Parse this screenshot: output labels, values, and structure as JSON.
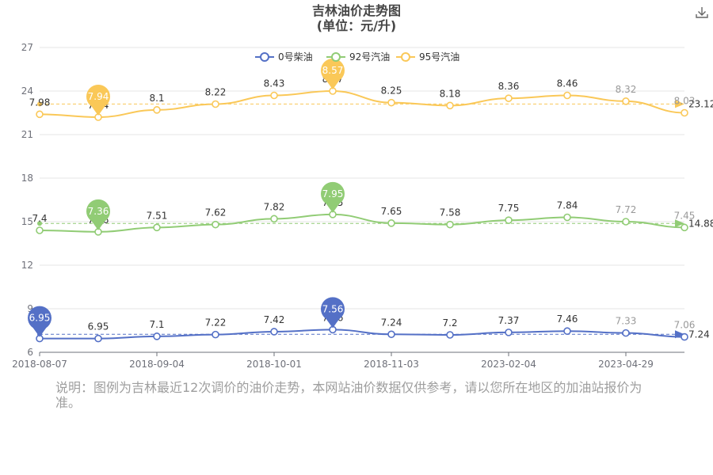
{
  "title": {
    "line1": "吉林油价走势图",
    "line2": "(单位：元/升)"
  },
  "toolbar": {
    "download_icon": "download-icon"
  },
  "note": "说明：图例为吉林最近12次调价的油价走势，本网站油价数据仅供参考，请以您所在地区的加油站报价为准。",
  "colors": {
    "diesel0": "#5470c6",
    "gas92": "#91cc75",
    "gas95": "#fac858"
  },
  "chart_data": {
    "type": "line",
    "x_tick_labels": [
      "2018-08-07",
      "2018-09-04",
      "2018-10-01",
      "2018-11-03",
      "2023-02-04",
      "2023-04-29"
    ],
    "ylim": [
      6,
      27
    ],
    "y_ticks": [
      6,
      9,
      12,
      15,
      18,
      21,
      24,
      27
    ],
    "grid": true,
    "legend_position": "top-center",
    "series": [
      {
        "key": "diesel0",
        "name": "0号柴油",
        "values": [
          6.95,
          6.95,
          7.1,
          7.22,
          7.42,
          7.56,
          7.24,
          7.2,
          7.37,
          7.46,
          7.33,
          7.06
        ],
        "labels": [
          "7",
          "6.95",
          "7.1",
          "7.22",
          "7.42",
          "7.56",
          "7.24",
          "7.2",
          "7.37",
          "7.46",
          "7.33",
          "7.06"
        ],
        "min_label": "6.95",
        "max_label": "7.56",
        "average": "7.24"
      },
      {
        "key": "gas92",
        "name": "92号汽油",
        "values": [
          14.4,
          14.3,
          14.6,
          14.8,
          15.2,
          15.5,
          14.9,
          14.8,
          15.1,
          15.3,
          15.0,
          14.6
        ],
        "labels": [
          "7.4",
          "7.36",
          "7.51",
          "7.62",
          "7.82",
          "7.95",
          "7.65",
          "7.58",
          "7.75",
          "7.84",
          "7.72",
          "7.45"
        ],
        "min_label": "7.36",
        "max_label": "7.95",
        "average": "14.88"
      },
      {
        "key": "gas95",
        "name": "95号汽油",
        "values": [
          22.4,
          22.2,
          22.7,
          23.1,
          23.7,
          24.0,
          23.2,
          23.0,
          23.5,
          23.7,
          23.3,
          22.5
        ],
        "labels": [
          "7.98",
          "7.94",
          "8.1",
          "8.22",
          "8.43",
          "8.57",
          "8.25",
          "8.18",
          "8.36",
          "8.46",
          "8.32",
          "8.03"
        ],
        "min_label": "7.94",
        "max_label": "8.57",
        "average": "23.12"
      }
    ]
  }
}
